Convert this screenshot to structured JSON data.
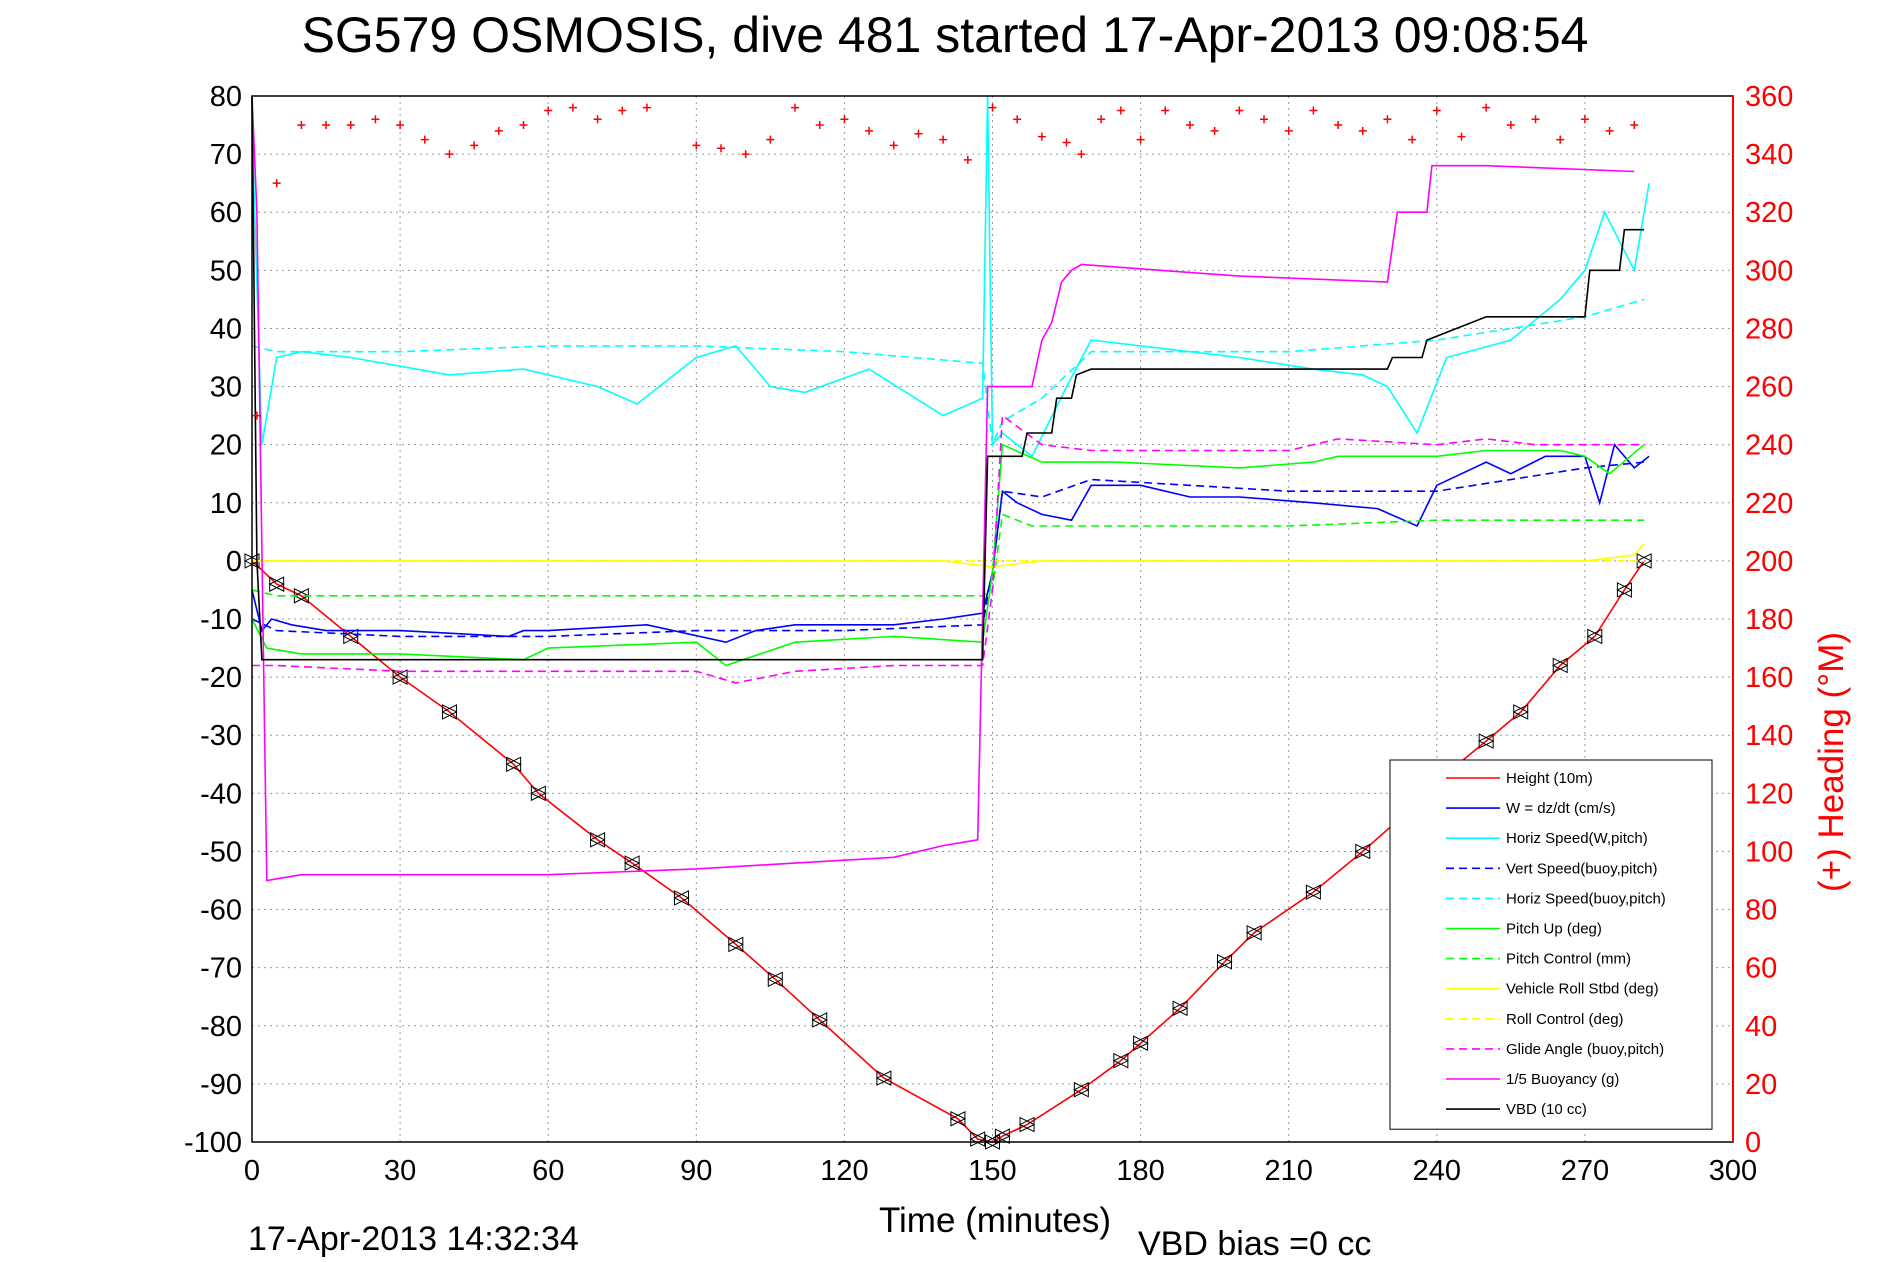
{
  "chart_data": {
    "type": "line",
    "title": "SG579 OSMOSIS, dive 481 started 17-Apr-2013 09:08:54",
    "xlabel": "Time (minutes)",
    "ylabel_right": "(+) Heading (°M)",
    "footer_left": "17-Apr-2013 14:32:34",
    "footer_right": "VBD bias =0 cc",
    "xlim": [
      0,
      300
    ],
    "ylim_left": [
      -100,
      80
    ],
    "ylim_right": [
      0,
      360
    ],
    "x_ticks": [
      "0",
      "30",
      "60",
      "90",
      "120",
      "150",
      "180",
      "210",
      "240",
      "270",
      "300"
    ],
    "y_ticks_left": [
      "80",
      "70",
      "60",
      "50",
      "40",
      "30",
      "20",
      "10",
      "0",
      "-10",
      "-20",
      "-30",
      "-40",
      "-50",
      "-60",
      "-70",
      "-80",
      "-90",
      "-100"
    ],
    "y_ticks_right": [
      "360",
      "340",
      "320",
      "300",
      "280",
      "260",
      "240",
      "220",
      "200",
      "180",
      "160",
      "140",
      "120",
      "100",
      "80",
      "60",
      "40",
      "20",
      "0"
    ],
    "grid": true,
    "legend_position": "bottom-right",
    "colors": {
      "height": "#ff0000",
      "w": "#0000ff",
      "horiz_speed": "#00ffff",
      "pitch": "#00ff00",
      "roll": "#ffff00",
      "glide": "#ff00ff",
      "buoyancy": "#ff00ff",
      "vbd": "#000000",
      "heading": "#ff0000"
    },
    "series": [
      {
        "name": "Height (10m)",
        "key": "height",
        "style": "solid",
        "x": [
          0,
          5,
          10,
          20,
          30,
          40,
          53,
          58,
          70,
          77,
          87,
          98,
          106,
          115,
          128,
          143,
          147,
          150,
          152,
          157,
          168,
          176,
          180,
          188,
          197,
          203,
          215,
          225,
          233,
          240,
          250,
          257,
          265,
          272,
          278,
          282
        ],
        "y": [
          0,
          -4,
          -6,
          -13,
          -20,
          -26,
          -35,
          -40,
          -48,
          -52,
          -58,
          -66,
          -72,
          -79,
          -89,
          -96,
          -99.5,
          -100,
          -99,
          -97,
          -91,
          -86,
          -83,
          -77,
          -69,
          -64,
          -57,
          -50,
          -44,
          -38,
          -31,
          -26,
          -18,
          -13,
          -5,
          0
        ]
      },
      {
        "name": "W = dz/dt (cm/s)",
        "key": "w",
        "style": "solid",
        "x": [
          0,
          2,
          4,
          8,
          15,
          30,
          52,
          55,
          60,
          80,
          96,
          102,
          110,
          130,
          140,
          148,
          150,
          152,
          155,
          160,
          166,
          170,
          180,
          190,
          200,
          215,
          228,
          236,
          240,
          250,
          255,
          262,
          270,
          273,
          276,
          280,
          283
        ],
        "y": [
          -5,
          -12,
          -10,
          -11,
          -12,
          -12,
          -13,
          -12,
          -12,
          -11,
          -14,
          -12,
          -11,
          -11,
          -10,
          -9,
          -2,
          12,
          10,
          8,
          7,
          13,
          13,
          11,
          11,
          10,
          9,
          6,
          13,
          17,
          15,
          18,
          18,
          10,
          20,
          16,
          18
        ]
      },
      {
        "name": "Horiz Speed(W,pitch)",
        "key": "horiz_speed",
        "style": "solid",
        "x": [
          0,
          2,
          5,
          10,
          20,
          40,
          55,
          70,
          78,
          90,
          98,
          105,
          112,
          125,
          140,
          148,
          149,
          150,
          152,
          158,
          165,
          170,
          180,
          200,
          215,
          225,
          230,
          236,
          242,
          255,
          265,
          270,
          274,
          280,
          283
        ],
        "y": [
          75,
          20,
          35,
          36,
          35,
          32,
          33,
          30,
          27,
          35,
          37,
          30,
          29,
          33,
          25,
          28,
          80,
          20,
          22,
          18,
          30,
          38,
          37,
          35,
          33,
          32,
          30,
          22,
          35,
          38,
          45,
          50,
          60,
          50,
          65
        ]
      },
      {
        "name": "Vert Speed(buoy,pitch)",
        "key": "w",
        "style": "dashed",
        "x": [
          0,
          5,
          30,
          60,
          90,
          120,
          148,
          150,
          152,
          160,
          170,
          210,
          240,
          270,
          282
        ],
        "y": [
          -10,
          -12,
          -13,
          -13,
          -12,
          -12,
          -11,
          -2,
          12,
          11,
          14,
          12,
          12,
          16,
          17
        ]
      },
      {
        "name": "Horiz Speed(buoy,pitch)",
        "key": "horiz_speed",
        "style": "dashed",
        "x": [
          0,
          5,
          30,
          60,
          90,
          120,
          148,
          150,
          152,
          160,
          170,
          210,
          240,
          270,
          282
        ],
        "y": [
          37,
          36,
          36,
          37,
          37,
          36,
          34,
          20,
          24,
          28,
          36,
          36,
          38,
          42,
          45
        ]
      },
      {
        "name": "Pitch Up (deg)",
        "key": "pitch",
        "style": "solid",
        "x": [
          0,
          3,
          10,
          30,
          55,
          60,
          90,
          96,
          110,
          130,
          148,
          150,
          152,
          160,
          165,
          168,
          175,
          200,
          215,
          220,
          240,
          250,
          265,
          270,
          275,
          282
        ],
        "y": [
          -10,
          -15,
          -16,
          -16,
          -17,
          -15,
          -14,
          -18,
          -14,
          -13,
          -14,
          -2,
          20,
          17,
          17,
          17,
          17,
          16,
          17,
          18,
          18,
          19,
          19,
          18,
          15,
          20
        ]
      },
      {
        "name": "Pitch Control (mm)",
        "key": "pitch",
        "style": "dashed",
        "x": [
          0,
          5,
          30,
          60,
          90,
          120,
          148,
          150,
          152,
          158,
          168,
          180,
          210,
          240,
          270,
          282
        ],
        "y": [
          -5,
          -6,
          -6,
          -6,
          -6,
          -6,
          -6,
          -5,
          8,
          6,
          6,
          6,
          6,
          7,
          7,
          7
        ]
      },
      {
        "name": "Vehicle Roll Stbd (deg)",
        "key": "roll",
        "style": "solid",
        "x": [
          0,
          5,
          20,
          40,
          60,
          80,
          100,
          120,
          140,
          150,
          160,
          170,
          180,
          200,
          220,
          240,
          260,
          270,
          280,
          282
        ],
        "y": [
          0,
          0,
          0,
          0,
          0,
          0,
          0,
          0,
          0,
          -1,
          0,
          0,
          0,
          0,
          0,
          0,
          0,
          0,
          1,
          3
        ]
      },
      {
        "name": "Roll Control (deg)",
        "key": "roll",
        "style": "dashed",
        "x": [
          0,
          5,
          20,
          40,
          60,
          80,
          100,
          120,
          140,
          150,
          160,
          170,
          180,
          200,
          220,
          240,
          260,
          270,
          280,
          282
        ],
        "y": [
          0,
          0,
          0,
          0,
          0,
          0,
          0,
          0,
          0,
          0,
          0,
          0,
          0,
          0,
          0,
          0,
          0,
          0,
          0,
          0
        ]
      },
      {
        "name": "Glide Angle (buoy,pitch)",
        "key": "glide",
        "style": "dashed",
        "x": [
          0,
          5,
          30,
          60,
          90,
          98,
          110,
          130,
          148,
          150,
          152,
          160,
          170,
          210,
          220,
          240,
          250,
          260,
          270,
          282
        ],
        "y": [
          -18,
          -18,
          -19,
          -19,
          -19,
          -21,
          -19,
          -18,
          -18,
          -5,
          25,
          20,
          19,
          19,
          21,
          20,
          21,
          20,
          20,
          20
        ]
      },
      {
        "name": "1/5 Buoyancy (g)",
        "key": "buoyancy",
        "style": "solid",
        "x": [
          0,
          1,
          3,
          10,
          30,
          60,
          90,
          110,
          130,
          140,
          147,
          149,
          151,
          158,
          160,
          162,
          164,
          166,
          168,
          200,
          230,
          232,
          238,
          239,
          250,
          280
        ],
        "y": [
          80,
          60,
          -55,
          -54,
          -54,
          -54,
          -53,
          -52,
          -51,
          -49,
          -48,
          30,
          30,
          30,
          38,
          41,
          48,
          50,
          51,
          49,
          48,
          60,
          60,
          68,
          68,
          67
        ]
      },
      {
        "name": "VBD (10 cc)",
        "key": "vbd",
        "style": "solid",
        "x": [
          0,
          1,
          2,
          4,
          10,
          50,
          100,
          148,
          149,
          151,
          156,
          157,
          162,
          163,
          166,
          167,
          170,
          200,
          230,
          231,
          237,
          238,
          250,
          270,
          271,
          277,
          278,
          282
        ],
        "y": [
          80,
          0,
          -17,
          -17,
          -17,
          -17,
          -17,
          -17,
          18,
          18,
          18,
          22,
          22,
          28,
          28,
          32,
          33,
          33,
          33,
          35,
          35,
          38,
          42,
          42,
          50,
          50,
          57,
          57
        ]
      },
      {
        "name": "",
        "key": "heading",
        "style": "markers",
        "x": [
          1,
          5,
          10,
          15,
          20,
          25,
          30,
          35,
          40,
          45,
          50,
          55,
          60,
          65,
          70,
          75,
          80,
          90,
          95,
          100,
          105,
          110,
          115,
          120,
          125,
          130,
          135,
          140,
          145,
          150,
          155,
          160,
          165,
          168,
          172,
          176,
          180,
          185,
          190,
          195,
          200,
          205,
          210,
          215,
          220,
          225,
          230,
          235,
          240,
          245,
          250,
          255,
          260,
          265,
          270,
          275,
          280
        ],
        "y": [
          250,
          330,
          350,
          350,
          350,
          352,
          350,
          345,
          340,
          343,
          348,
          350,
          355,
          356,
          352,
          355,
          356,
          343,
          342,
          340,
          345,
          356,
          350,
          352,
          348,
          343,
          347,
          345,
          338,
          356,
          352,
          346,
          344,
          340,
          352,
          355,
          345,
          355,
          350,
          348,
          355,
          352,
          348,
          355,
          350,
          348,
          352,
          345,
          355,
          346,
          356,
          350,
          352,
          345,
          352,
          348,
          350
        ]
      }
    ]
  }
}
